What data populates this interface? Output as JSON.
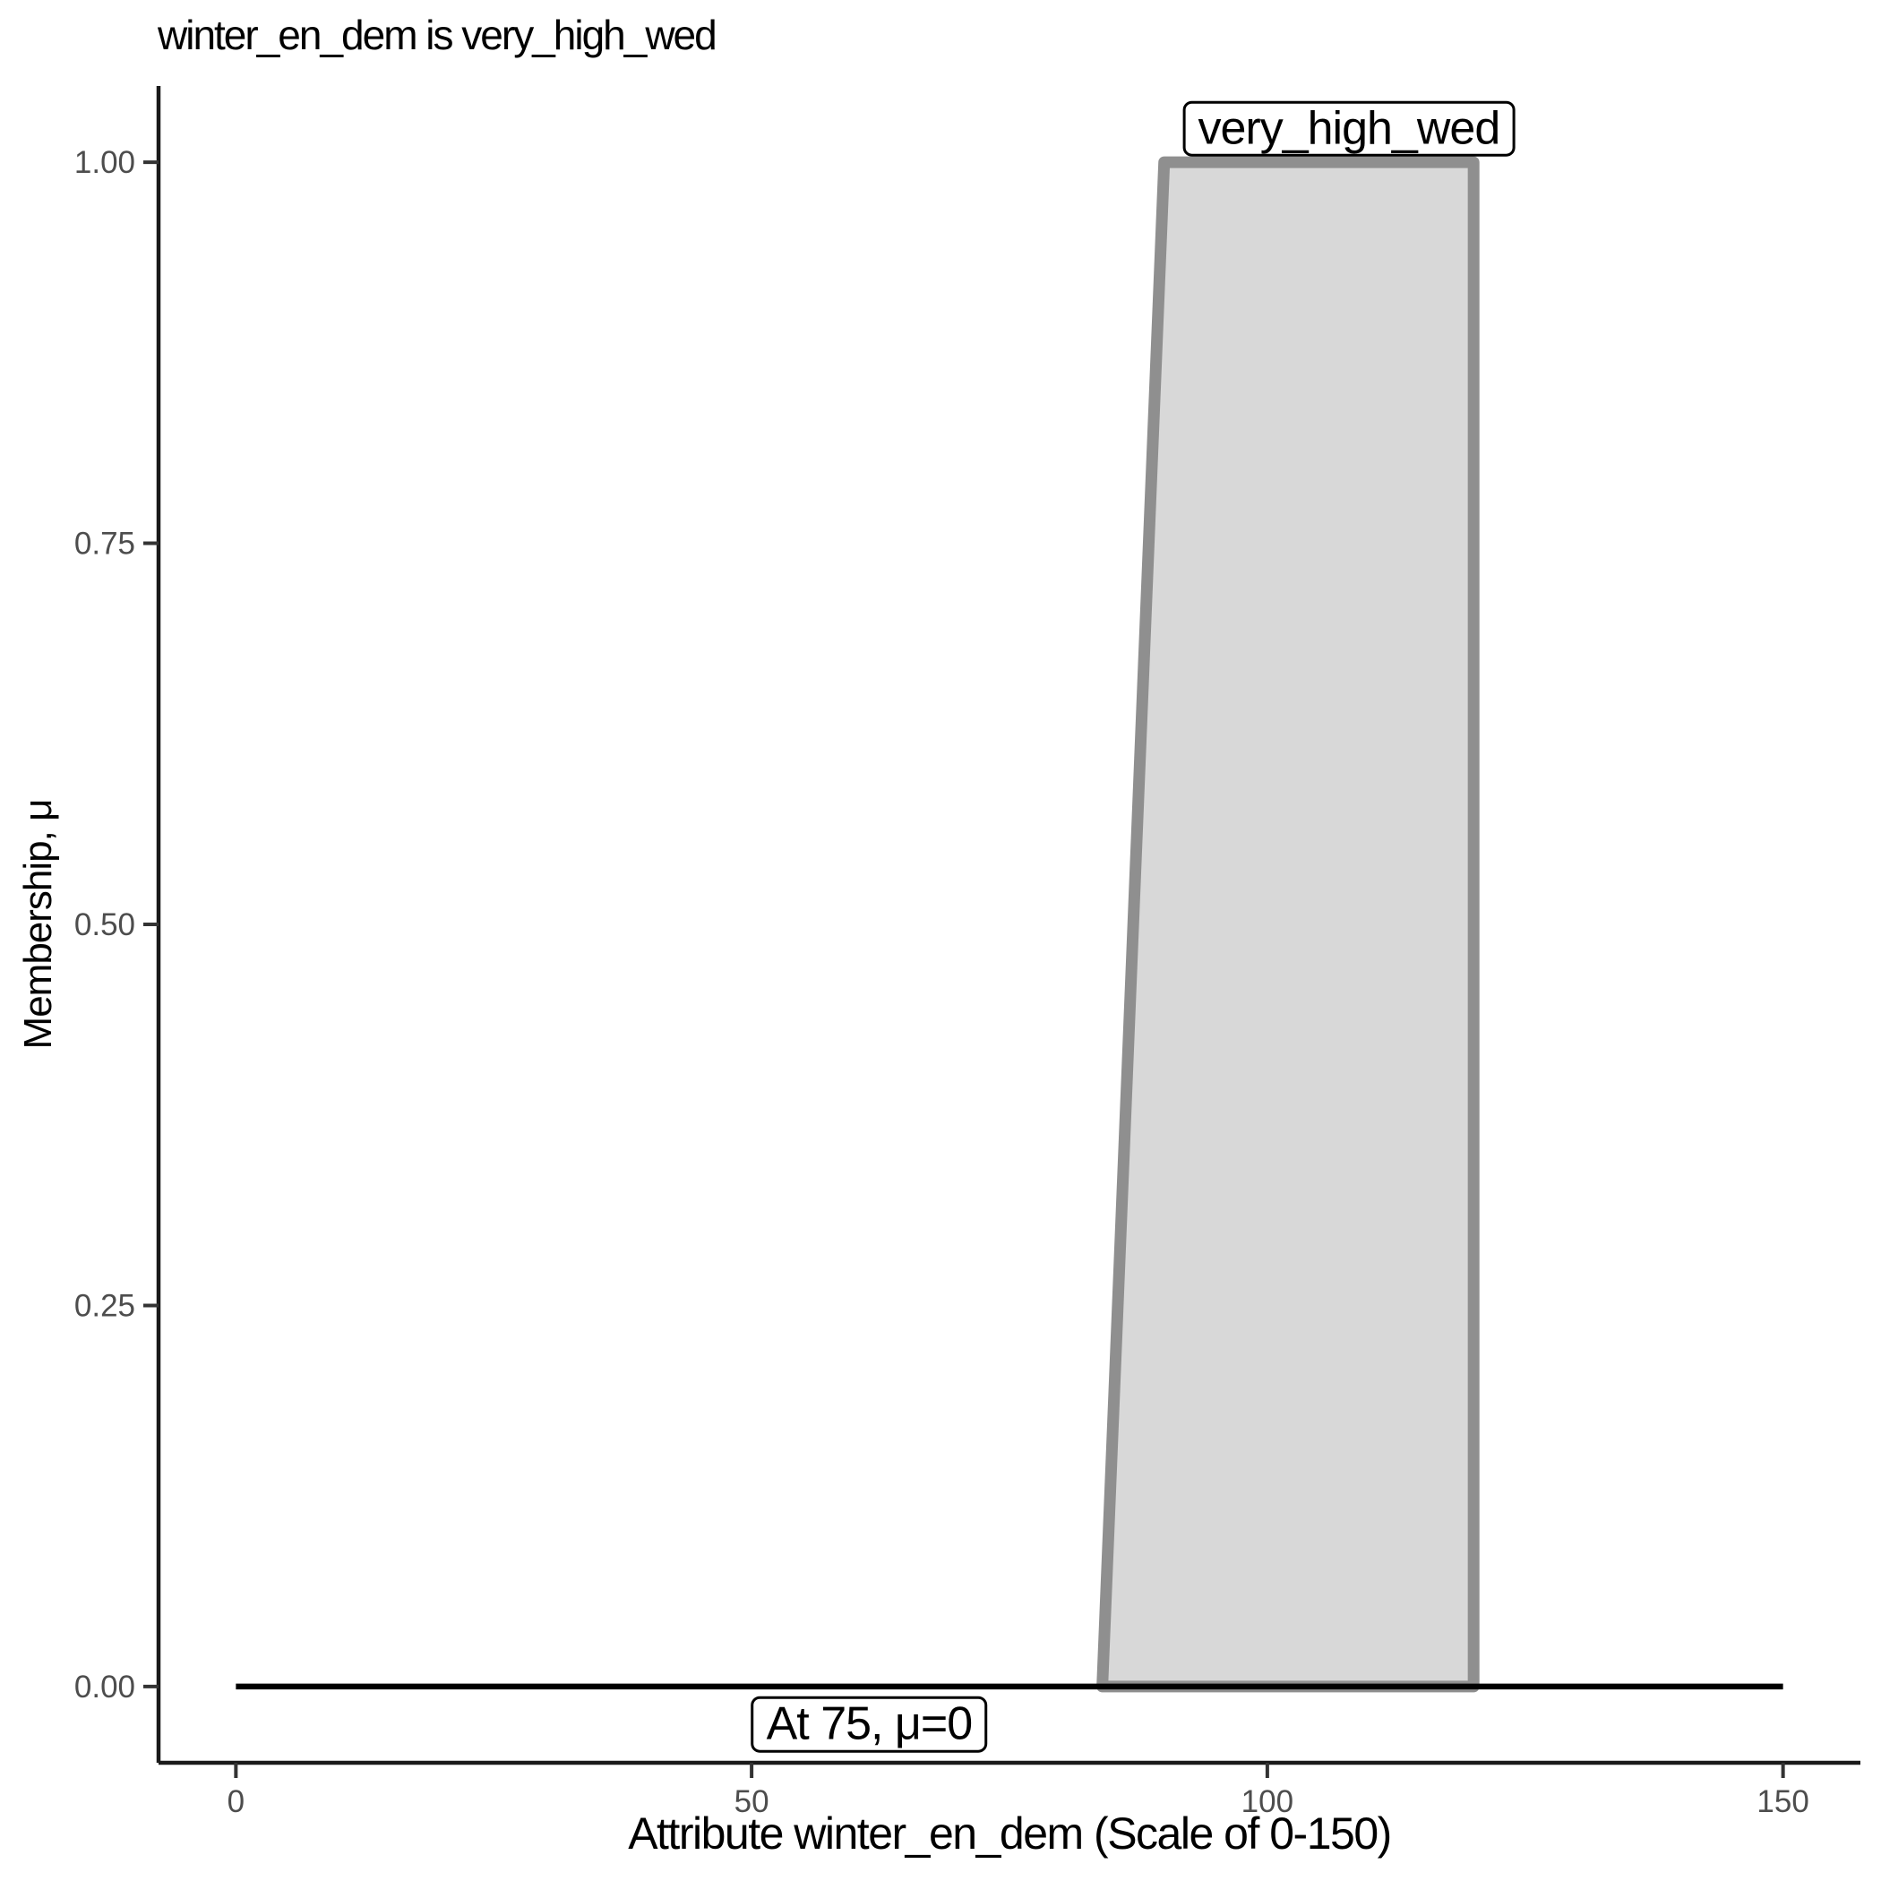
{
  "chart_data": {
    "type": "area",
    "title": "winter_en_dem is very_high_wed",
    "xlabel": "Attribute winter_en_dem (Scale of 0-150)",
    "ylabel": "Membership, μ",
    "xlim": [
      -7.5,
      157.5
    ],
    "ylim": [
      -0.05,
      1.05
    ],
    "grid": false,
    "legend": "none",
    "x_ticks": [
      {
        "value": 0,
        "label": "0"
      },
      {
        "value": 50,
        "label": "50"
      },
      {
        "value": 100,
        "label": "100"
      },
      {
        "value": 150,
        "label": "150"
      }
    ],
    "y_ticks": [
      {
        "value": 0.0,
        "label": "0.00"
      },
      {
        "value": 0.25,
        "label": "0.25"
      },
      {
        "value": 0.5,
        "label": "0.50"
      },
      {
        "value": 0.75,
        "label": "0.75"
      },
      {
        "value": 1.0,
        "label": "1.00"
      }
    ],
    "series": [
      {
        "name": "very_high_wed",
        "shape": "trapezoid",
        "points": [
          [
            84,
            0
          ],
          [
            90,
            1
          ],
          [
            120,
            1
          ],
          [
            120,
            0
          ]
        ],
        "fill": "#d8d8d8",
        "stroke": "#8f8f8f"
      }
    ],
    "baseline": {
      "mu": 0,
      "x_start": 0,
      "x_end": 150,
      "color": "#000000"
    },
    "annotations": [
      {
        "text": "very_high_wed",
        "x": 107.9,
        "mu": 1.022
      },
      {
        "text": "At 75, μ=0",
        "x": 61.4,
        "mu": -0.025
      }
    ]
  },
  "colors": {
    "axis_line": "#1a1a1a",
    "tick_mark": "#333333",
    "tick_label": "#4d4d4d",
    "series_fill": "#d8d8d8",
    "series_stroke": "#8f8f8f",
    "baseline": "#000000",
    "annotation_border": "#000000",
    "annotation_bg": "#ffffff",
    "text": "#000000"
  }
}
